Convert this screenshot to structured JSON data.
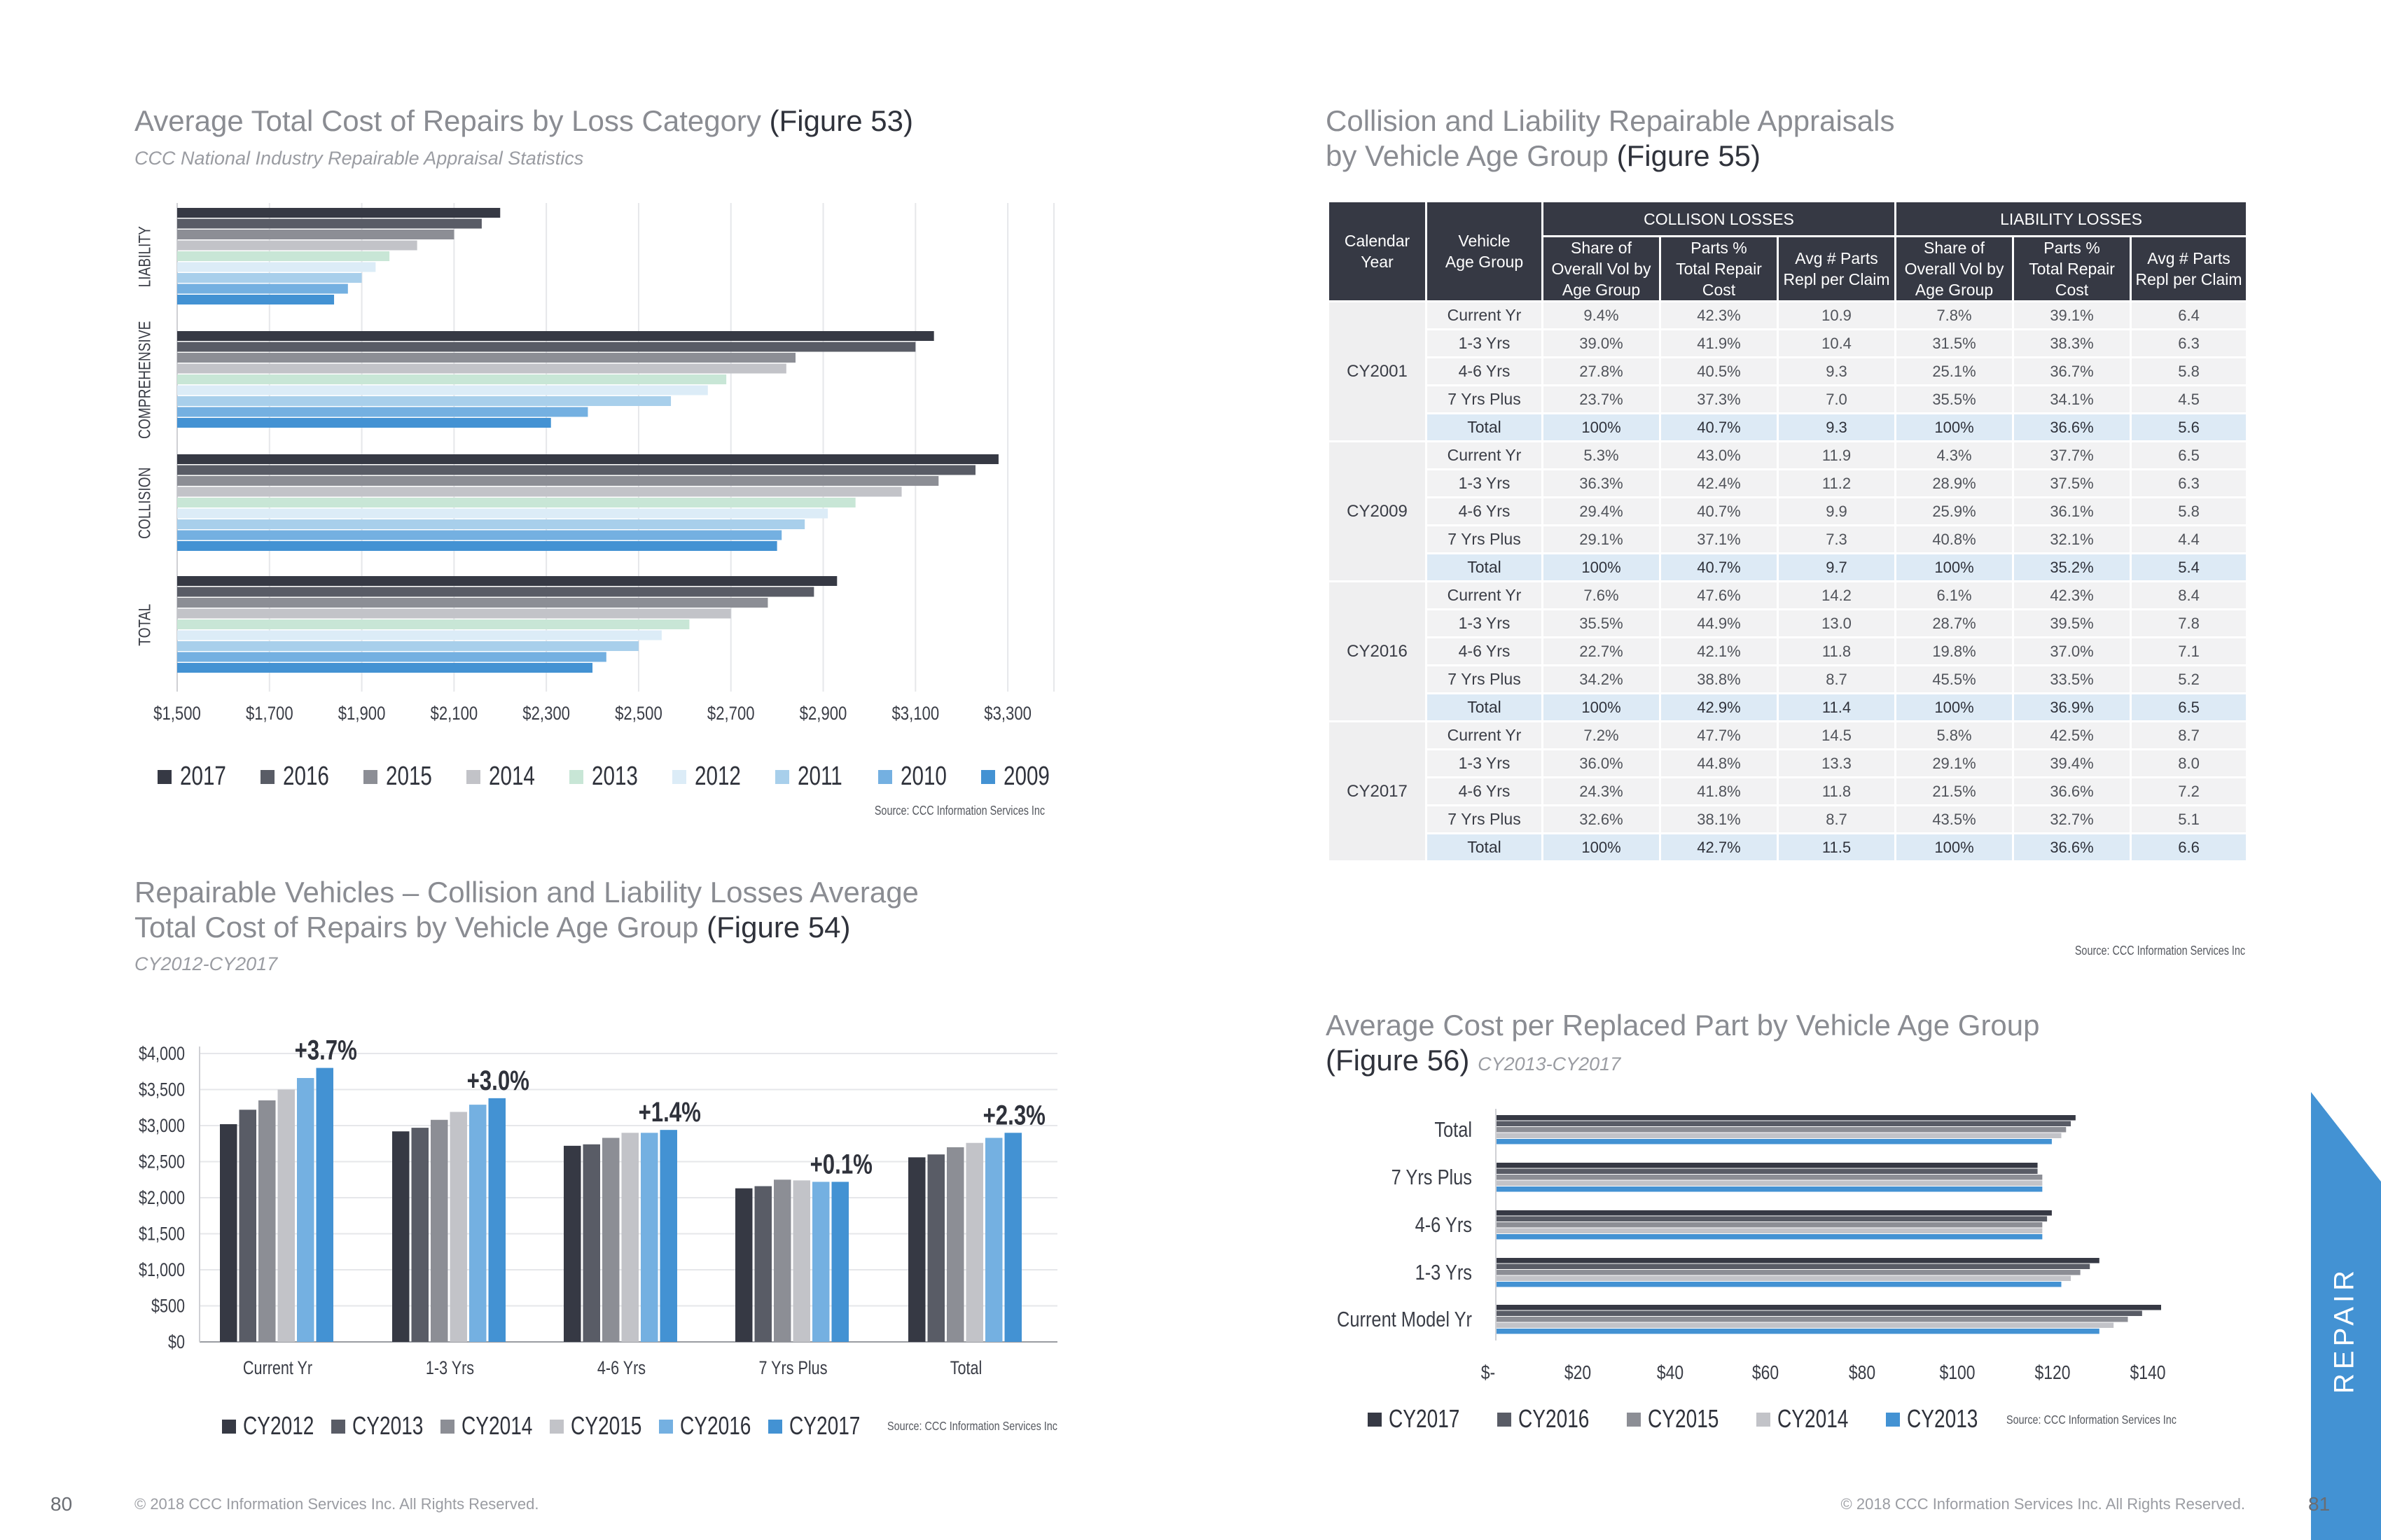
{
  "page_left": {
    "page_number": "80",
    "copyright": "© 2018 CCC Information Services Inc. All Rights Reserved."
  },
  "page_right": {
    "page_number": "81",
    "copyright": "© 2018 CCC Information Services Inc. All Rights Reserved.",
    "side_tab": "REPAIR",
    "side_tab_color": "#4392d3"
  },
  "fig53": {
    "title_text": "Average Total Cost of Repairs by Loss Category",
    "title_fig": "(Figure 53)",
    "subtitle": "CCC National Industry Repairable Appraisal Statistics",
    "source": "Source: CCC Information Services Inc"
  },
  "fig54": {
    "title_line1": "Repairable Vehicles – Collision and Liability Losses Average",
    "title_line2": "Total Cost of Repairs by Vehicle Age Group",
    "title_fig": "(Figure 54)",
    "subtitle": "CY2012-CY2017",
    "source": "Source: CCC Information Services Inc"
  },
  "fig55": {
    "title_line1": "Collision and Liability Repairable Appraisals",
    "title_line2": "by Vehicle Age Group",
    "title_fig": "(Figure 55)",
    "source": "Source: CCC Information Services Inc",
    "headers": {
      "calendar_year": "Calendar Year",
      "vehicle_age_group": "Vehicle Age Group",
      "collision_losses": "COLLISON LOSSES",
      "liability_losses": "LIABILITY LOSSES",
      "share_of_overall": "Share of Overall Vol by Age Group",
      "parts_pct": "Parts % Total Repair Cost",
      "avg_parts": "Avg # Parts Repl per Claim"
    },
    "groups": [
      {
        "year": "CY2001",
        "rows": [
          {
            "age": "Current Yr",
            "v": [
              "9.4%",
              "42.3%",
              "10.9",
              "7.8%",
              "39.1%",
              "6.4"
            ]
          },
          {
            "age": "1-3 Yrs",
            "v": [
              "39.0%",
              "41.9%",
              "10.4",
              "31.5%",
              "38.3%",
              "6.3"
            ]
          },
          {
            "age": "4-6 Yrs",
            "v": [
              "27.8%",
              "40.5%",
              "9.3",
              "25.1%",
              "36.7%",
              "5.8"
            ]
          },
          {
            "age": "7 Yrs Plus",
            "v": [
              "23.7%",
              "37.3%",
              "7.0",
              "35.5%",
              "34.1%",
              "4.5"
            ]
          },
          {
            "age": "Total",
            "v": [
              "100%",
              "40.7%",
              "9.3",
              "100%",
              "36.6%",
              "5.6"
            ]
          }
        ]
      },
      {
        "year": "CY2009",
        "rows": [
          {
            "age": "Current Yr",
            "v": [
              "5.3%",
              "43.0%",
              "11.9",
              "4.3%",
              "37.7%",
              "6.5"
            ]
          },
          {
            "age": "1-3 Yrs",
            "v": [
              "36.3%",
              "42.4%",
              "11.2",
              "28.9%",
              "37.5%",
              "6.3"
            ]
          },
          {
            "age": "4-6 Yrs",
            "v": [
              "29.4%",
              "40.7%",
              "9.9",
              "25.9%",
              "36.1%",
              "5.8"
            ]
          },
          {
            "age": "7 Yrs Plus",
            "v": [
              "29.1%",
              "37.1%",
              "7.3",
              "40.8%",
              "32.1%",
              "4.4"
            ]
          },
          {
            "age": "Total",
            "v": [
              "100%",
              "40.7%",
              "9.7",
              "100%",
              "35.2%",
              "5.4"
            ]
          }
        ]
      },
      {
        "year": "CY2016",
        "rows": [
          {
            "age": "Current Yr",
            "v": [
              "7.6%",
              "47.6%",
              "14.2",
              "6.1%",
              "42.3%",
              "8.4"
            ]
          },
          {
            "age": "1-3 Yrs",
            "v": [
              "35.5%",
              "44.9%",
              "13.0",
              "28.7%",
              "39.5%",
              "7.8"
            ]
          },
          {
            "age": "4-6 Yrs",
            "v": [
              "22.7%",
              "42.1%",
              "11.8",
              "19.8%",
              "37.0%",
              "7.1"
            ]
          },
          {
            "age": "7 Yrs Plus",
            "v": [
              "34.2%",
              "38.8%",
              "8.7",
              "45.5%",
              "33.5%",
              "5.2"
            ]
          },
          {
            "age": "Total",
            "v": [
              "100%",
              "42.9%",
              "11.4",
              "100%",
              "36.9%",
              "6.5"
            ]
          }
        ]
      },
      {
        "year": "CY2017",
        "rows": [
          {
            "age": "Current Yr",
            "v": [
              "7.2%",
              "47.7%",
              "14.5",
              "5.8%",
              "42.5%",
              "8.7"
            ]
          },
          {
            "age": "1-3 Yrs",
            "v": [
              "36.0%",
              "44.8%",
              "13.3",
              "29.1%",
              "39.4%",
              "8.0"
            ]
          },
          {
            "age": "4-6 Yrs",
            "v": [
              "24.3%",
              "41.8%",
              "11.8",
              "21.5%",
              "36.6%",
              "7.2"
            ]
          },
          {
            "age": "7 Yrs Plus",
            "v": [
              "32.6%",
              "38.1%",
              "8.7",
              "43.5%",
              "32.7%",
              "5.1"
            ]
          },
          {
            "age": "Total",
            "v": [
              "100%",
              "42.7%",
              "11.5",
              "100%",
              "36.6%",
              "6.6"
            ]
          }
        ]
      }
    ]
  },
  "fig56": {
    "title_line1": "Average Cost per Replaced Part by Vehicle Age Group",
    "title_fig": "(Figure 56)",
    "subtitle": "CY2013-CY2017",
    "source": "Source: CCC Information Services Inc"
  },
  "chart_data": [
    {
      "id": "fig53",
      "type": "bar",
      "orientation": "horizontal",
      "categories": [
        "LIABILITY",
        "COMPREHENSIVE",
        "COLLISION",
        "TOTAL"
      ],
      "series": [
        {
          "name": "2017",
          "color": "#363944",
          "values": [
            2200,
            3140,
            3280,
            2930
          ]
        },
        {
          "name": "2016",
          "color": "#595c66",
          "values": [
            2160,
            3100,
            3230,
            2880
          ]
        },
        {
          "name": "2015",
          "color": "#8c8e95",
          "values": [
            2100,
            2840,
            3150,
            2780
          ]
        },
        {
          "name": "2014",
          "color": "#c2c3c8",
          "values": [
            2020,
            2820,
            3070,
            2700
          ]
        },
        {
          "name": "2013",
          "color": "#c8e6d6",
          "values": [
            1960,
            2690,
            2970,
            2610
          ]
        },
        {
          "name": "2012",
          "color": "#dcecf7",
          "values": [
            1930,
            2650,
            2910,
            2550
          ]
        },
        {
          "name": "2011",
          "color": "#a8cfeb",
          "values": [
            1900,
            2570,
            2860,
            2500
          ]
        },
        {
          "name": "2010",
          "color": "#74b0e1",
          "values": [
            1870,
            2390,
            2810,
            2430
          ]
        },
        {
          "name": "2009",
          "color": "#4392d3",
          "values": [
            1840,
            2310,
            2800,
            2400
          ]
        }
      ],
      "x_ticks": [
        "$1,500",
        "$1,700",
        "$1,900",
        "$2,100",
        "$2,300",
        "$2,500",
        "$2,700",
        "$2,900",
        "$3,100",
        "$3,300"
      ],
      "xlim": [
        1500,
        3400
      ],
      "grid": true,
      "legend": "bottom"
    },
    {
      "id": "fig54",
      "type": "bar",
      "orientation": "vertical",
      "categories": [
        "Current Yr",
        "1-3 Yrs",
        "4-6 Yrs",
        "7 Yrs Plus",
        "Total"
      ],
      "series": [
        {
          "name": "CY2012",
          "color": "#363944",
          "values": [
            3020,
            2920,
            2720,
            2130,
            2560
          ]
        },
        {
          "name": "CY2013",
          "color": "#595c66",
          "values": [
            3220,
            2970,
            2740,
            2160,
            2600
          ]
        },
        {
          "name": "CY2014",
          "color": "#8c8e95",
          "values": [
            3350,
            3080,
            2830,
            2250,
            2700
          ]
        },
        {
          "name": "CY2015",
          "color": "#c2c3c8",
          "values": [
            3500,
            3190,
            2900,
            2240,
            2760
          ]
        },
        {
          "name": "CY2016",
          "color": "#74b0e1",
          "values": [
            3660,
            3290,
            2900,
            2220,
            2830
          ]
        },
        {
          "name": "CY2017",
          "color": "#4392d3",
          "values": [
            3800,
            3380,
            2940,
            2220,
            2900
          ]
        }
      ],
      "annotations": [
        "+3.7%",
        "+3.0%",
        "+1.4%",
        "+0.1%",
        "+2.3%"
      ],
      "y_ticks": [
        "$0",
        "$500",
        "$1,000",
        "$1,500",
        "$2,000",
        "$2,500",
        "$3,000",
        "$3,500",
        "$4,000"
      ],
      "ylim": [
        0,
        4000
      ],
      "grid": true,
      "legend": "bottom"
    },
    {
      "id": "fig56",
      "type": "bar",
      "orientation": "horizontal",
      "categories": [
        "Total",
        "7 Yrs Plus",
        "4-6 Yrs",
        "1-3 Yrs",
        "Current Model Yr"
      ],
      "series": [
        {
          "name": "CY2017",
          "color": "#363944",
          "values": [
            122,
            114,
            117,
            127,
            140
          ]
        },
        {
          "name": "CY2016",
          "color": "#595c66",
          "values": [
            121,
            114,
            116,
            125,
            136
          ]
        },
        {
          "name": "CY2015",
          "color": "#8c8e95",
          "values": [
            120,
            115,
            115,
            123,
            133
          ]
        },
        {
          "name": "CY2014",
          "color": "#c2c3c8",
          "values": [
            119,
            115,
            115,
            121,
            130
          ]
        },
        {
          "name": "CY2013",
          "color": "#4392d3",
          "values": [
            117,
            115,
            115,
            119,
            127
          ]
        }
      ],
      "x_ticks": [
        "$-",
        "$20",
        "$40",
        "$60",
        "$80",
        "$100",
        "$120",
        "$140"
      ],
      "xlim": [
        0,
        140
      ],
      "grid": false,
      "legend": "bottom"
    }
  ]
}
